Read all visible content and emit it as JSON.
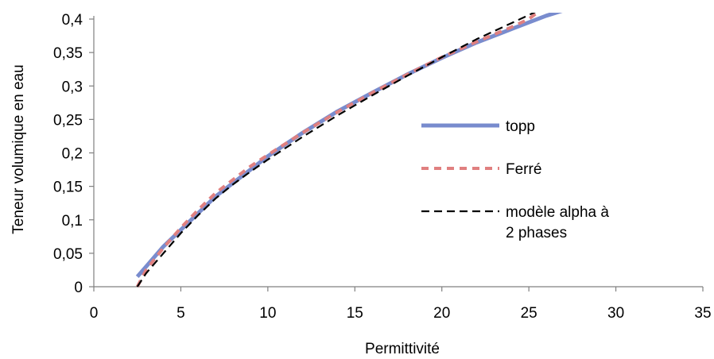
{
  "chart_data": {
    "type": "line",
    "xlabel": "Permittivité",
    "ylabel": "Teneur volumique en eau",
    "xlim": [
      0,
      35
    ],
    "ylim": [
      0,
      0.4
    ],
    "x_ticks": [
      "0",
      "5",
      "10",
      "15",
      "20",
      "25",
      "30",
      "35"
    ],
    "y_ticks": [
      "0",
      "0,05",
      "0,1",
      "0,15",
      "0,2",
      "0,25",
      "0,3",
      "0,35",
      "0,4"
    ],
    "grid": false,
    "legend_position": "right",
    "series": [
      {
        "name": "topp",
        "color": "#6a7fc9",
        "style": "solid",
        "x": [
          2.5,
          3,
          4,
          5,
          6,
          7,
          8,
          9,
          10,
          12,
          14,
          16,
          18,
          20,
          22,
          24,
          25,
          26,
          27
        ],
        "y": [
          0.015,
          0.03,
          0.06,
          0.085,
          0.11,
          0.135,
          0.155,
          0.175,
          0.195,
          0.23,
          0.262,
          0.29,
          0.317,
          0.342,
          0.365,
          0.385,
          0.395,
          0.405,
          0.413
        ]
      },
      {
        "name": "Ferré",
        "color": "#e08080",
        "style": "dotted",
        "x": [
          2.5,
          3,
          4,
          5,
          6,
          7,
          8,
          9,
          10,
          12,
          14,
          16,
          18,
          20,
          22,
          24,
          25,
          25.5
        ],
        "y": [
          0.0,
          0.025,
          0.058,
          0.088,
          0.115,
          0.14,
          0.16,
          0.18,
          0.197,
          0.23,
          0.261,
          0.29,
          0.317,
          0.343,
          0.366,
          0.388,
          0.4,
          0.41
        ]
      },
      {
        "name": "modèle alpha à 2 phases",
        "color": "#000000",
        "style": "dashed",
        "x": [
          2.5,
          3,
          4,
          5,
          6,
          7,
          8,
          9,
          10,
          12,
          14,
          16,
          18,
          20,
          22,
          24,
          25,
          26
        ],
        "y": [
          0.0,
          0.02,
          0.05,
          0.08,
          0.107,
          0.132,
          0.153,
          0.172,
          0.19,
          0.224,
          0.256,
          0.286,
          0.315,
          0.343,
          0.37,
          0.394,
          0.406,
          0.418
        ]
      }
    ]
  }
}
